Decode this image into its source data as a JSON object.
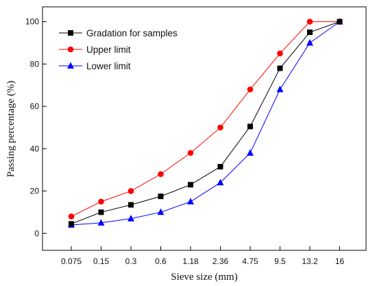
{
  "chart_data": {
    "type": "line",
    "title": "",
    "xlabel": "Sieve size (mm)",
    "ylabel": "Passing percentage (%)",
    "categories": [
      "0.075",
      "0.15",
      "0.3",
      "0.6",
      "1.18",
      "2.36",
      "4.75",
      "9.5",
      "13.2",
      "16"
    ],
    "ylim": [
      -8,
      107
    ],
    "yticks": [
      0,
      20,
      40,
      60,
      80,
      100
    ],
    "grid": false,
    "legend_position": "top-left",
    "series": [
      {
        "name": "Gradation for samples",
        "color": "#000000",
        "marker": "square",
        "values": [
          4.5,
          10,
          13.5,
          17.5,
          23,
          31.5,
          50.5,
          78,
          95,
          100
        ]
      },
      {
        "name": "Upper limit",
        "color": "#ff0000",
        "marker": "circle",
        "values": [
          8,
          15,
          20,
          28,
          38,
          50,
          68,
          85,
          100,
          100
        ]
      },
      {
        "name": "Lower limit",
        "color": "#0000ff",
        "marker": "triangle",
        "values": [
          4,
          5,
          7,
          10,
          15,
          24,
          38,
          68,
          90,
          100
        ]
      }
    ]
  }
}
